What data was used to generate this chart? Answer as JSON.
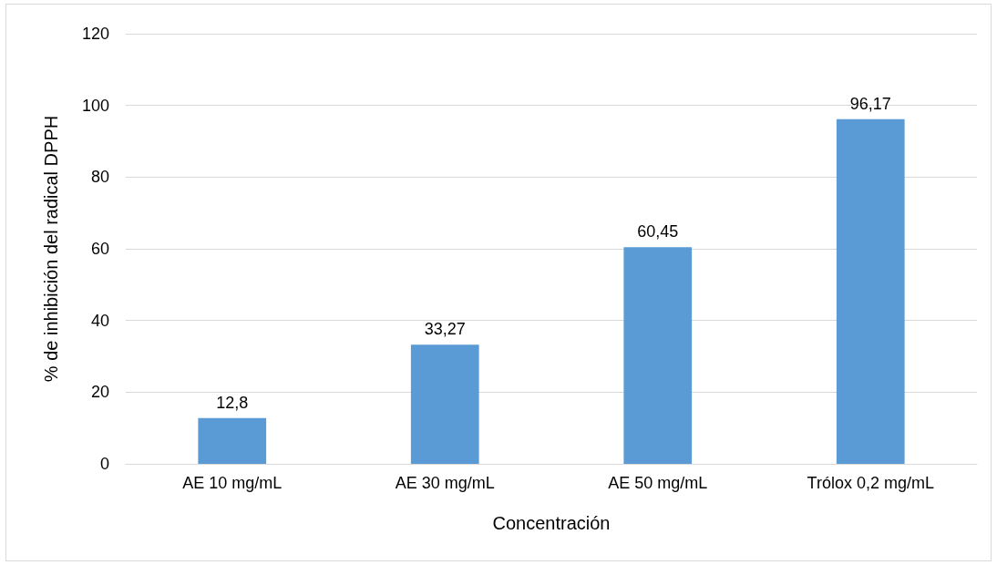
{
  "chart_data": {
    "type": "bar",
    "xlabel": "Concentración",
    "ylabel": "% de inhibición del radical DPPH",
    "categories": [
      "AE 10 mg/mL",
      "AE 30 mg/mL",
      "AE 50 mg/mL",
      "Trólox 0,2 mg/mL"
    ],
    "values": [
      12.8,
      33.27,
      60.45,
      96.17
    ],
    "value_labels": [
      "12,8",
      "33,27",
      "60,45",
      "96,17"
    ],
    "color": "#5b9bd5",
    "ylim": [
      0,
      120
    ],
    "yticks": [
      0,
      20,
      40,
      60,
      80,
      100,
      120
    ],
    "grid": "y"
  }
}
